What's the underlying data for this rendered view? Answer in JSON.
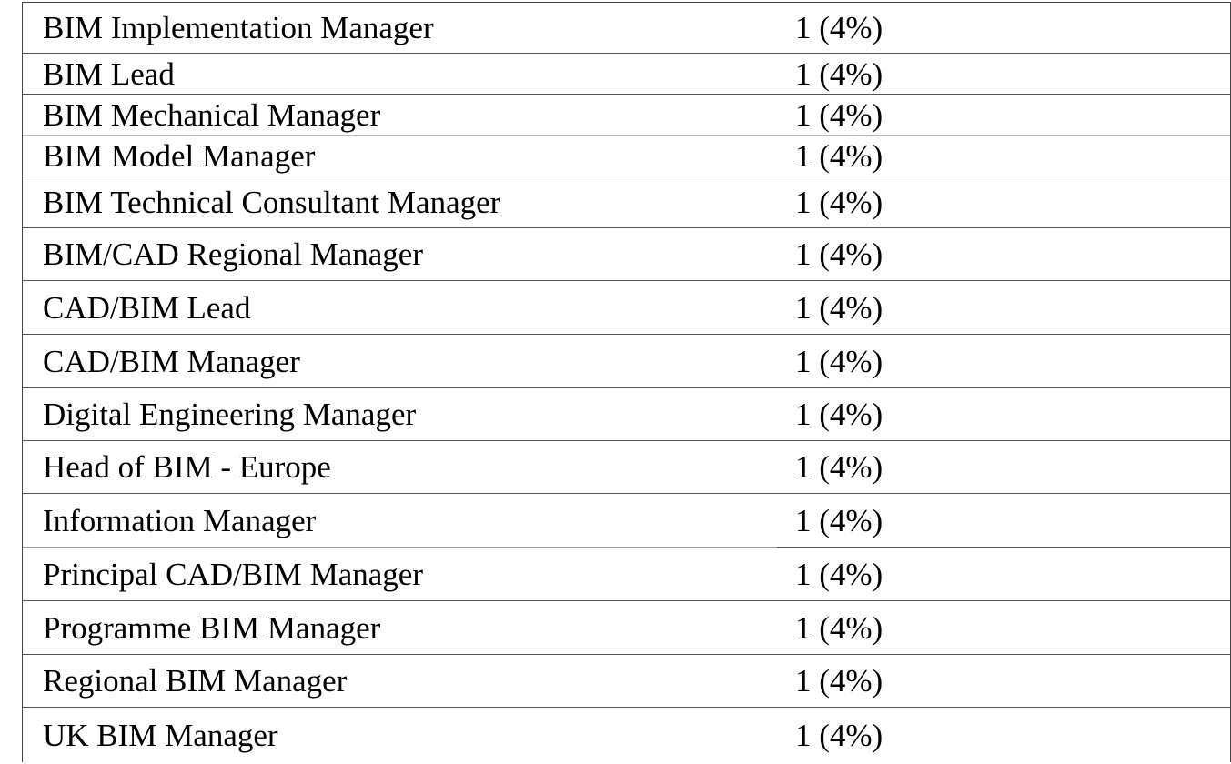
{
  "table": {
    "rows": [
      {
        "role": "BIM Implementation Manager",
        "count": "1 (4%)"
      },
      {
        "role": "BIM Lead",
        "count": "1 (4%)"
      },
      {
        "role": "BIM Mechanical Manager",
        "count": "1 (4%)"
      },
      {
        "role": "BIM Model Manager",
        "count": "1 (4%)"
      },
      {
        "role": "BIM Technical Consultant Manager",
        "count": "1 (4%)"
      },
      {
        "role": "BIM/CAD Regional Manager",
        "count": "1 (4%)"
      },
      {
        "role": "CAD/BIM Lead",
        "count": "1 (4%)"
      },
      {
        "role": "CAD/BIM Manager",
        "count": "1 (4%)"
      },
      {
        "role": "Digital Engineering Manager",
        "count": "1 (4%)"
      },
      {
        "role": "Head of BIM - Europe",
        "count": "1 (4%)"
      },
      {
        "role": "Information Manager",
        "count": "1 (4%)"
      },
      {
        "role": "Principal CAD/BIM Manager",
        "count": "1 (4%)"
      },
      {
        "role": "Programme BIM Manager",
        "count": "1 (4%)"
      },
      {
        "role": "Regional BIM Manager",
        "count": "1 (4%)"
      },
      {
        "role": "UK BIM Manager",
        "count": "1 (4%)"
      }
    ]
  }
}
